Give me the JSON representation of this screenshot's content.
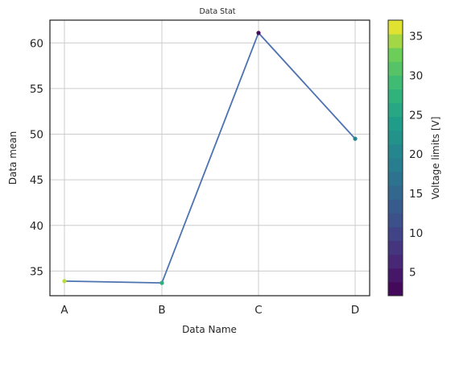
{
  "chart_data": {
    "type": "line",
    "title": "Data Stat",
    "xlabel": "Data Name",
    "ylabel": "Data mean",
    "categories": [
      "A",
      "B",
      "C",
      "D"
    ],
    "series": [
      {
        "values": [
          33.9,
          33.7,
          61.1,
          49.5
        ],
        "point_color_values": [
          35,
          27,
          3,
          20
        ],
        "line_color": "#4c72b0"
      }
    ],
    "ylim": [
      32.3,
      62.5
    ],
    "yticks": [
      35,
      40,
      45,
      50,
      55,
      60
    ],
    "grid": true,
    "colorbar": {
      "label": "Voltage limits [V]",
      "range": [
        2,
        37
      ],
      "ticks": [
        5,
        10,
        15,
        20,
        25,
        30,
        35
      ],
      "colormap": "viridis",
      "levels": 20
    }
  }
}
